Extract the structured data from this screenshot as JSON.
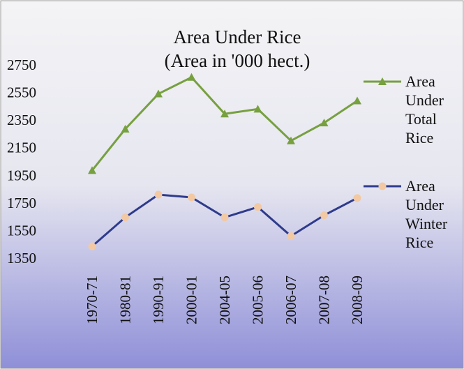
{
  "chart_data": {
    "type": "line",
    "title": "Area Under Rice",
    "subtitle": "(Area in '000 hect.)",
    "categories": [
      "1970-71",
      "1980-81",
      "1990-91",
      "2000-01",
      "2004-05",
      "2005-06",
      "2006-07",
      "2007-08",
      "2008-09"
    ],
    "series": [
      {
        "name": "Area Under Total Rice",
        "color": "#77a03f",
        "marker": "triangle",
        "marker_color": "#77a03f",
        "values": [
          1985,
          2285,
          2540,
          2660,
          2395,
          2430,
          2200,
          2330,
          2490
        ]
      },
      {
        "name": "Area Under Winter Rice",
        "color": "#2e3b8c",
        "marker": "circle",
        "marker_color": "#f2c9a3",
        "values": [
          1435,
          1645,
          1810,
          1790,
          1645,
          1720,
          1510,
          1660,
          1785
        ]
      }
    ],
    "ylim": [
      1350,
      2750
    ],
    "yticks": [
      1350,
      1550,
      1750,
      1950,
      2150,
      2350,
      2550,
      2750
    ],
    "grid": false,
    "legend": "right"
  }
}
